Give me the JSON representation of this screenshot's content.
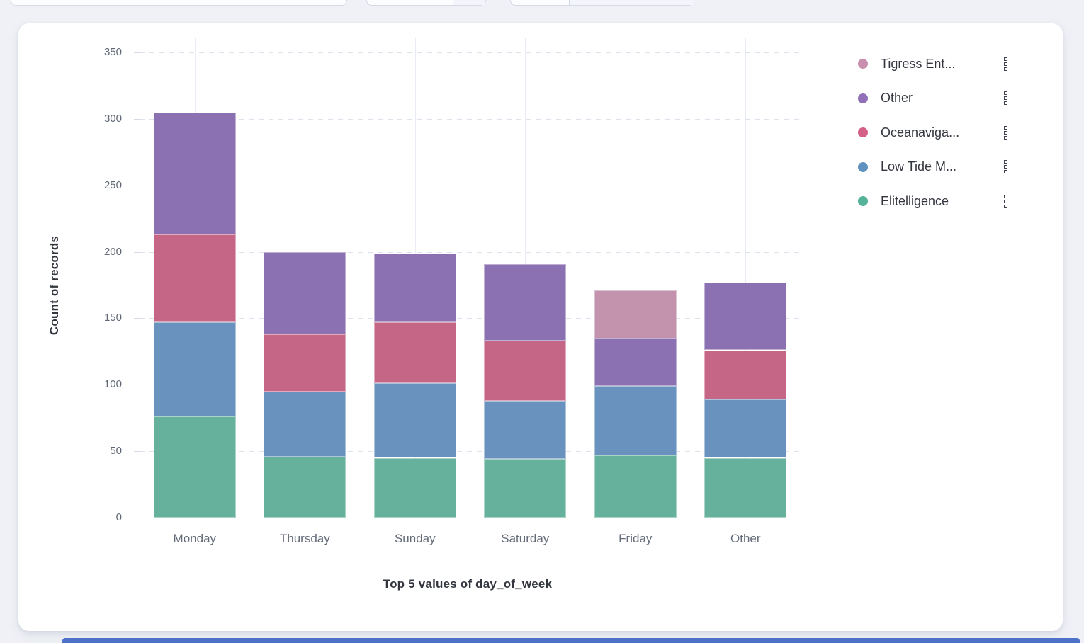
{
  "colors": {
    "page_background": "#eff1f6",
    "card_background": "#ffffff",
    "next_panel_edge_blue": "#4d71c9",
    "axis_text": "#5f6673",
    "title_text": "#33363f"
  },
  "chart_data": {
    "type": "bar",
    "stacked": true,
    "orientation": "vertical",
    "categories": [
      "Monday",
      "Thursday",
      "Sunday",
      "Saturday",
      "Friday",
      "Other"
    ],
    "series": [
      {
        "name": "Elitelligence",
        "color": "#66b19b",
        "values": [
          76,
          46,
          45,
          44,
          47,
          45
        ]
      },
      {
        "name": "Low Tide M...",
        "color": "#6a92bf",
        "values": [
          71,
          49,
          56,
          44,
          52,
          44
        ]
      },
      {
        "name": "Oceanaviga...",
        "color": "#c56687",
        "values": [
          66,
          43,
          46,
          45,
          0,
          37
        ]
      },
      {
        "name": "Other",
        "color": "#8b71b1",
        "values": [
          92,
          62,
          52,
          58,
          36,
          51
        ]
      },
      {
        "name": "Tigress Ent...",
        "color": "#c392ad",
        "values": [
          0,
          0,
          0,
          0,
          36,
          0
        ]
      }
    ],
    "totals": [
      305,
      200,
      199,
      191,
      171,
      177
    ],
    "xlabel": "Top 5 values of day_of_week",
    "ylabel": "Count of records",
    "ylim": [
      0,
      350
    ],
    "yticks": [
      0,
      50,
      100,
      150,
      200,
      250,
      300,
      350
    ],
    "grid": true,
    "gridline_style": "dashed-horizontal, faint vertical at bar centers",
    "legend_position": "right"
  },
  "legend": {
    "items": [
      {
        "label": "Tigress Ent...",
        "swatch": "#CA8EAE"
      },
      {
        "label": "Other",
        "swatch": "#9170B8"
      },
      {
        "label": "Oceanaviga...",
        "swatch": "#D36086"
      },
      {
        "label": "Low Tide M...",
        "swatch": "#6092C0"
      },
      {
        "label": "Elitelligence",
        "swatch": "#54B399"
      }
    ]
  }
}
